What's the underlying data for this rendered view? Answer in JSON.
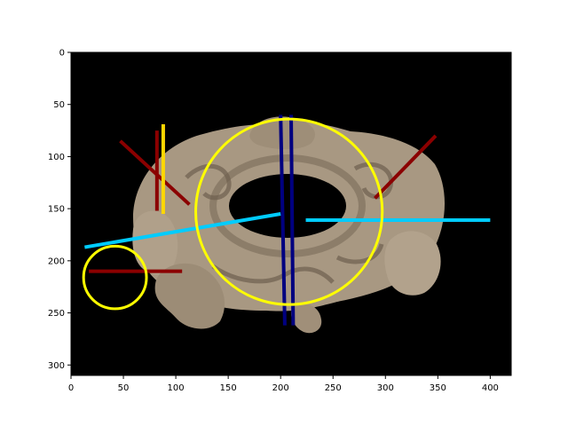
{
  "chart_data": {
    "type": "image",
    "xlim": [
      0,
      420
    ],
    "ylim": [
      310,
      0
    ],
    "x_ticks": [
      0,
      50,
      100,
      150,
      200,
      250,
      300,
      350,
      400
    ],
    "y_ticks": [
      0,
      50,
      100,
      150,
      200,
      250,
      300
    ],
    "x_tick_labels": [
      "0",
      "50",
      "100",
      "150",
      "200",
      "250",
      "300",
      "350",
      "400"
    ],
    "y_tick_labels": [
      "0",
      "50",
      "100",
      "150",
      "200",
      "250",
      "300"
    ],
    "background_color": "#000000",
    "object_color": "#a89882",
    "circles": [
      {
        "name": "large-circle",
        "cx": 208,
        "cy": 153,
        "r": 89,
        "color": "#ffff00"
      },
      {
        "name": "small-circle",
        "cx": 42,
        "cy": 216,
        "r": 30,
        "color": "#ffff00"
      }
    ],
    "segments": [
      {
        "name": "dark-red-diagonal-left",
        "x1": 47,
        "y1": 85,
        "x2": 113,
        "y2": 146,
        "color": "#8b0000"
      },
      {
        "name": "dark-red-vertical-left",
        "x1": 82,
        "y1": 75,
        "x2": 82,
        "y2": 152,
        "color": "#8b0000"
      },
      {
        "name": "yellow-vertical-left",
        "x1": 88,
        "y1": 69,
        "x2": 88,
        "y2": 155,
        "color": "#ffd700"
      },
      {
        "name": "dark-red-diagonal-right",
        "x1": 290,
        "y1": 140,
        "x2": 348,
        "y2": 80,
        "color": "#8b0000"
      },
      {
        "name": "dark-red-horizontal",
        "x1": 17,
        "y1": 210,
        "x2": 106,
        "y2": 210,
        "color": "#8b0000"
      },
      {
        "name": "cyan-diagonal",
        "x1": 13,
        "y1": 187,
        "x2": 200,
        "y2": 155,
        "color": "#00ccff"
      },
      {
        "name": "cyan-horizontal",
        "x1": 224,
        "y1": 161,
        "x2": 400,
        "y2": 161,
        "color": "#00ccff"
      },
      {
        "name": "navy-line-left",
        "x1": 200,
        "y1": 60,
        "x2": 204,
        "y2": 262,
        "color": "#000080"
      },
      {
        "name": "navy-line-right",
        "x1": 210,
        "y1": 60,
        "x2": 212,
        "y2": 262,
        "color": "#000080"
      }
    ]
  }
}
